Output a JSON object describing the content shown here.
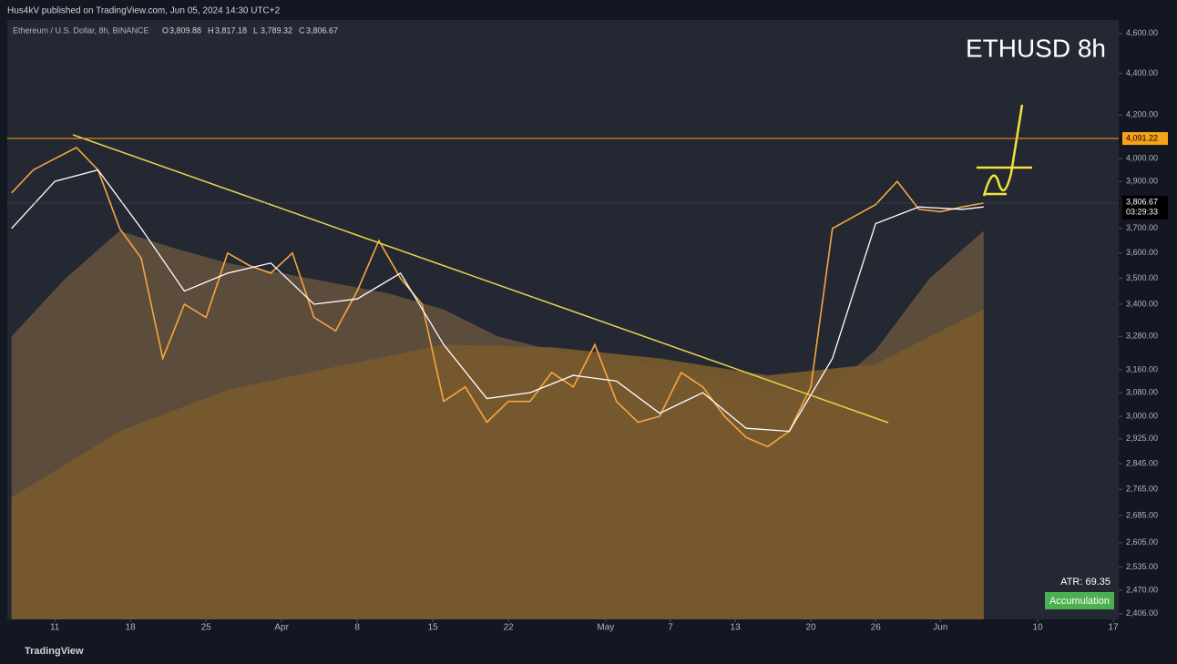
{
  "header": "Hus4kV published on TradingView.com, Jun 05, 2024 14:30 UTC+2",
  "footer": "TradingView",
  "chart_data": {
    "type": "line",
    "title": "ETHUSD 8h",
    "symbol": "Ethereum / U.S. Dollar, 8h, BINANCE",
    "ohlc_names": [
      "O",
      "H",
      "L",
      "C"
    ],
    "ohlc": [
      3809.88,
      3817.18,
      3789.32,
      3806.67
    ],
    "ohlc_labels": [
      "3,809.88",
      "3,817.18",
      "3,789.32",
      "3,806.67"
    ],
    "countdown": "03:29:33",
    "hline": {
      "value": 4091.22,
      "label": "4,091.22",
      "color": "#f7a21b"
    },
    "atr": "ATR: 69.35",
    "status": "Accumulation",
    "log_scale": true,
    "xlim": [
      5.6,
      108.5
    ],
    "xticks": [
      {
        "value": 10,
        "label": "11"
      },
      {
        "value": 17,
        "label": "18"
      },
      {
        "value": 24,
        "label": "25"
      },
      {
        "value": 31,
        "label": "Apr"
      },
      {
        "value": 38,
        "label": "8"
      },
      {
        "value": 45,
        "label": "15"
      },
      {
        "value": 52,
        "label": "22"
      },
      {
        "value": 61,
        "label": "May"
      },
      {
        "value": 67,
        "label": "7"
      },
      {
        "value": 73,
        "label": "13"
      },
      {
        "value": 80,
        "label": "20"
      },
      {
        "value": 86,
        "label": "26"
      },
      {
        "value": 92,
        "label": "Jun"
      },
      {
        "value": 101,
        "label": "10"
      },
      {
        "value": 108,
        "label": "17"
      }
    ],
    "ylim": [
      2391,
      4670
    ],
    "yticks": [
      {
        "value": 4600,
        "label": "4,600.00"
      },
      {
        "value": 4400,
        "label": "4,400.00"
      },
      {
        "value": 4200,
        "label": "4,200.00"
      },
      {
        "value": 4000,
        "label": "4,000.00"
      },
      {
        "value": 3900,
        "label": "3,900.00"
      },
      {
        "value": 3700,
        "label": "3,700.00"
      },
      {
        "value": 3600,
        "label": "3,600.00"
      },
      {
        "value": 3500,
        "label": "3,500.00"
      },
      {
        "value": 3400,
        "label": "3,400.00"
      },
      {
        "value": 3280,
        "label": "3,280.00"
      },
      {
        "value": 3160,
        "label": "3,160.00"
      },
      {
        "value": 3080,
        "label": "3,080.00"
      },
      {
        "value": 3000,
        "label": "3,000.00"
      },
      {
        "value": 2925,
        "label": "2,925.00"
      },
      {
        "value": 2845,
        "label": "2,845.00"
      },
      {
        "value": 2765,
        "label": "2,765.00"
      },
      {
        "value": 2685,
        "label": "2,685.00"
      },
      {
        "value": 2605,
        "label": "2,605.00"
      },
      {
        "value": 2535,
        "label": "2,535.00"
      },
      {
        "value": 2470,
        "label": "2,470.00"
      },
      {
        "value": 2406,
        "label": "2,406.00"
      }
    ],
    "series": [
      {
        "kind": "area",
        "color": "#8a6a44",
        "x": [
          6,
          11,
          16,
          21,
          26,
          31,
          36,
          41,
          46,
          51,
          56,
          61,
          66,
          71,
          76,
          81,
          86,
          91,
          96
        ],
        "values": [
          3280,
          3500,
          3690,
          3620,
          3560,
          3520,
          3480,
          3440,
          3380,
          3280,
          3230,
          3200,
          3170,
          3130,
          3090,
          3070,
          3230,
          3500,
          3690
        ]
      },
      {
        "kind": "area",
        "color": "#77582e",
        "x": [
          6,
          16,
          26,
          36,
          46,
          56,
          66,
          76,
          86,
          96
        ],
        "values": [
          2740,
          2950,
          3090,
          3170,
          3250,
          3240,
          3200,
          3140,
          3180,
          3380
        ]
      },
      {
        "kind": "line",
        "color": "#f7a540",
        "x": [
          6,
          8,
          10,
          12,
          14,
          16,
          18,
          20,
          22,
          24,
          26,
          28,
          30,
          32,
          34,
          36,
          38,
          40,
          42,
          44,
          46,
          48,
          50,
          52,
          54,
          56,
          58,
          60,
          62,
          64,
          66,
          68,
          70,
          72,
          74,
          76,
          78,
          80,
          82,
          84,
          86,
          88,
          90,
          92,
          94,
          96
        ],
        "values": [
          3850,
          3950,
          4000,
          4050,
          3950,
          3700,
          3580,
          3200,
          3400,
          3350,
          3600,
          3550,
          3520,
          3600,
          3350,
          3300,
          3450,
          3650,
          3500,
          3400,
          3050,
          3100,
          2980,
          3050,
          3050,
          3150,
          3100,
          3250,
          3050,
          2980,
          3000,
          3150,
          3100,
          3000,
          2930,
          2900,
          2950,
          3100,
          3700,
          3750,
          3800,
          3900,
          3780,
          3770,
          3790,
          3806.67
        ]
      },
      {
        "kind": "line",
        "color": "#ffffff",
        "x": [
          6,
          10,
          14,
          18,
          22,
          26,
          30,
          34,
          38,
          42,
          46,
          50,
          54,
          58,
          62,
          66,
          70,
          74,
          78,
          82,
          86,
          90,
          94,
          96
        ],
        "values": [
          3700,
          3900,
          3950,
          3700,
          3450,
          3520,
          3560,
          3400,
          3420,
          3520,
          3250,
          3060,
          3080,
          3140,
          3120,
          3010,
          3080,
          2960,
          2950,
          3200,
          3720,
          3790,
          3780,
          3790
        ]
      }
    ]
  }
}
